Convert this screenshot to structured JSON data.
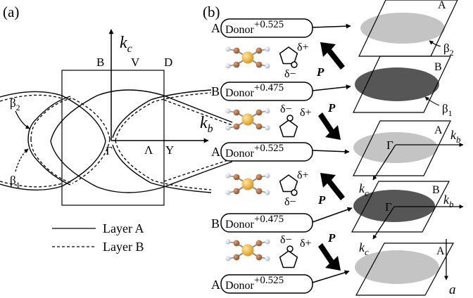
{
  "panel_a": {
    "label": "(a)",
    "axis_kc": {
      "main": "k",
      "sub": "c"
    },
    "axis_kb": {
      "main": "k",
      "sub": "b"
    },
    "points": {
      "B": "B",
      "V": "V",
      "D": "D",
      "Gamma": "Γ",
      "Lambda": "Λ",
      "Y": "Y"
    },
    "beta2": {
      "main": "β",
      "sub": "2"
    },
    "beta1": {
      "main": "β",
      "sub": "1"
    },
    "legend": [
      {
        "label": "Layer A",
        "style": "solid"
      },
      {
        "label": "Layer B",
        "style": "dashed"
      }
    ]
  },
  "panel_b": {
    "label": "(b)",
    "layers": [
      {
        "layer": "A",
        "donor": "Donor",
        "charge": "+0.525",
        "plane_label": "A",
        "ellipse_color": "#c4c4c4",
        "right_label": {
          "main": "β",
          "sub": "2"
        }
      },
      {
        "layer": "B",
        "donor": "Donor",
        "charge": "+0.475",
        "plane_label": "B",
        "ellipse_color": "#565656",
        "right_label": {
          "main": "β",
          "sub": "1"
        }
      },
      {
        "layer": "A",
        "donor": "Donor",
        "charge": "+0.525",
        "plane_label": "A",
        "ellipse_color": "#c4c4c4",
        "gamma": "Γ",
        "kb": {
          "main": "k",
          "sub": "b"
        }
      },
      {
        "layer": "B",
        "donor": "Donor",
        "charge": "+0.475",
        "plane_label": "B",
        "ellipse_color": "#565656",
        "gamma": "Γ",
        "kb": {
          "main": "k",
          "sub": "b"
        },
        "kc": {
          "main": "k",
          "sub": "c"
        }
      },
      {
        "layer": "A",
        "donor": "Donor",
        "charge": "+0.525",
        "plane_label": "A",
        "ellipse_color": "#c4c4c4",
        "kc": {
          "main": "k",
          "sub": "c"
        }
      }
    ],
    "dipoles": [
      {
        "P": "P",
        "delta_plus": "δ+",
        "delta_minus": "δ−",
        "direction": "up"
      },
      {
        "P": "P",
        "delta_plus": "δ+",
        "delta_minus": "δ−",
        "direction": "down"
      },
      {
        "P": "P",
        "delta_plus": "δ+",
        "delta_minus": "δ−",
        "direction": "up"
      },
      {
        "P": "P",
        "delta_plus": "δ+",
        "delta_minus": "δ−",
        "direction": "down"
      }
    ],
    "stack_axis": "a"
  }
}
